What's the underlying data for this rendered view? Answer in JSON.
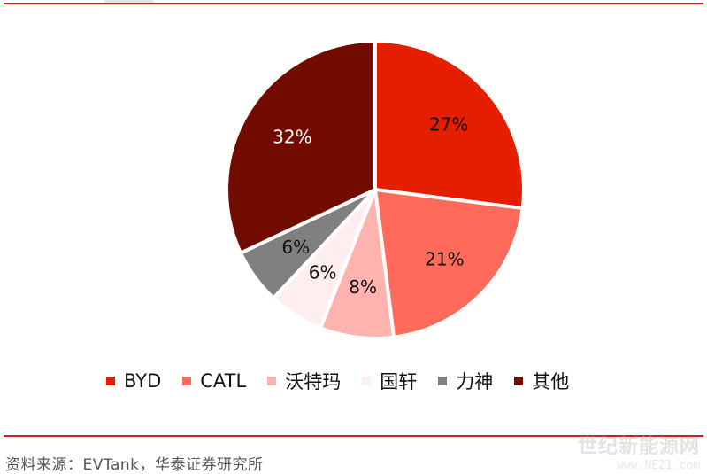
{
  "chart_data": {
    "type": "pie",
    "categories": [
      "BYD",
      "CATL",
      "沃特玛",
      "国轩",
      "力神",
      "其他"
    ],
    "values": [
      27,
      21,
      8,
      6,
      6,
      32
    ],
    "labels": [
      "27%",
      "21%",
      "8%",
      "6%",
      "6%",
      "32%"
    ],
    "colors": [
      "#e61e00",
      "#ff6a5a",
      "#ffb3ae",
      "#ffeeee",
      "#808080",
      "#720c00"
    ],
    "label_colors": [
      "#111111",
      "#111111",
      "#111111",
      "#111111",
      "#111111",
      "#ffffff"
    ],
    "legend_position": "bottom"
  },
  "source": "资料来源：EVTank，华泰证券研究所",
  "watermark": {
    "title": "世纪新能源网",
    "url": "www.NE21.com"
  }
}
